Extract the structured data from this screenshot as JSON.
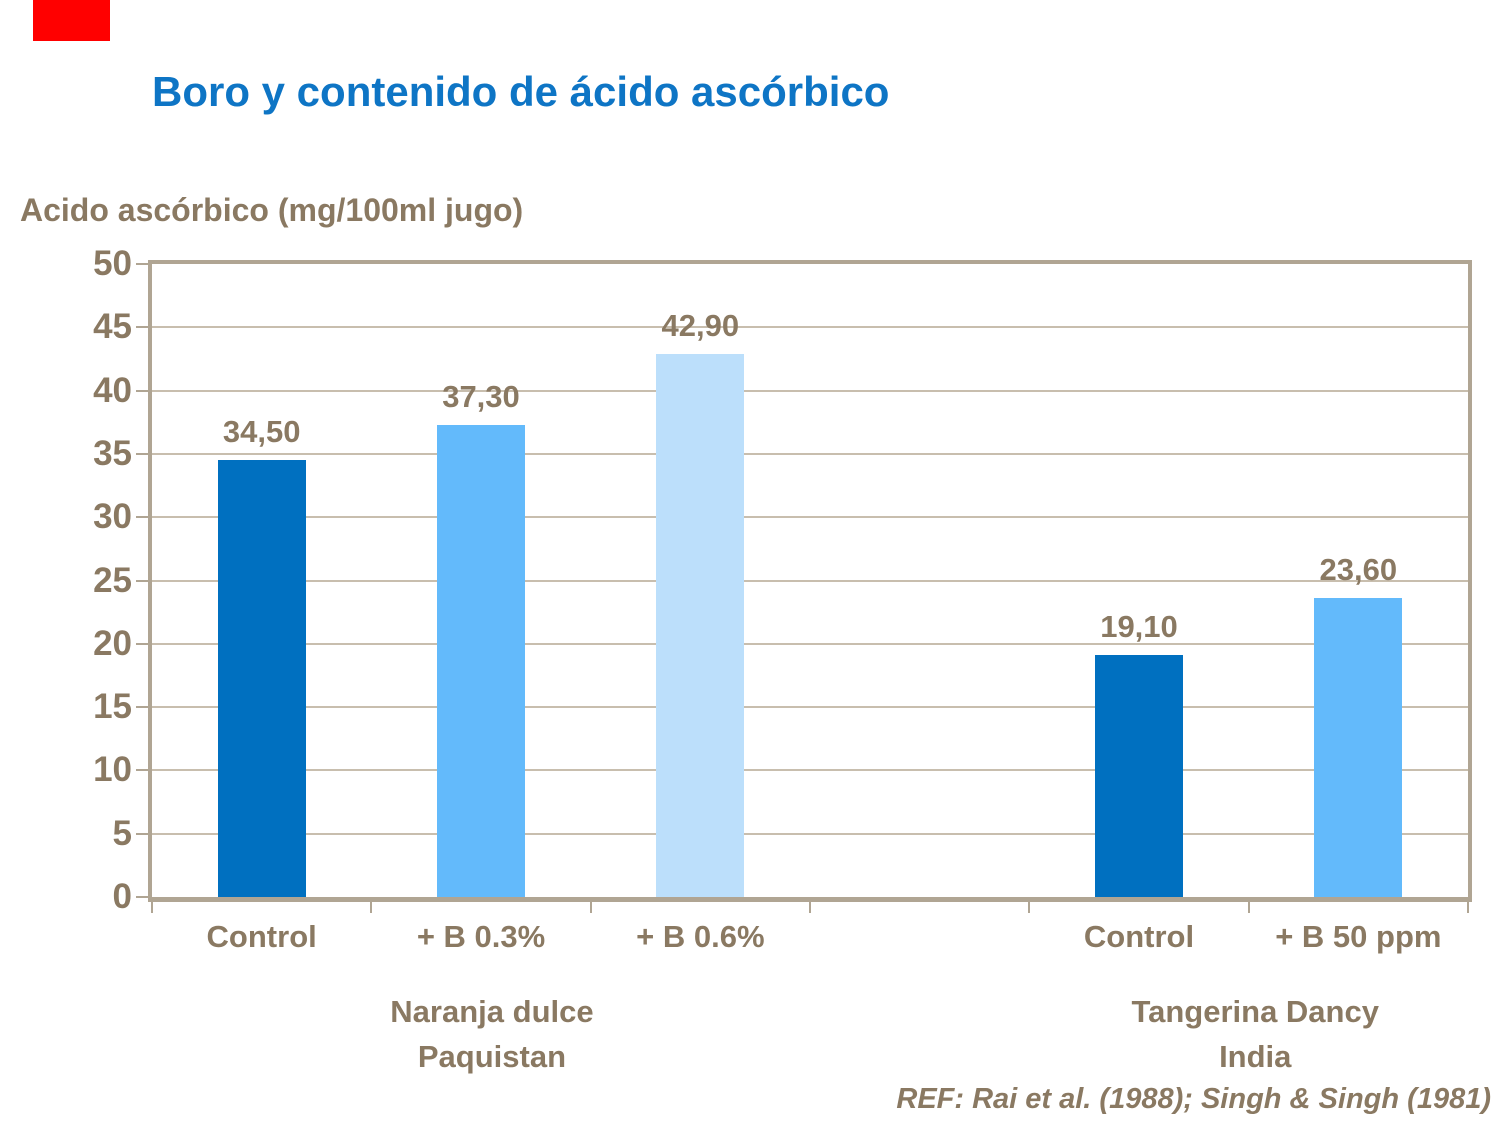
{
  "slide": {
    "title": "Boro y contenido de ácido ascórbico",
    "reference": "REF: Rai et al. (1988); Singh & Singh (1981)"
  },
  "chart_data": {
    "type": "bar",
    "title": "Boro y contenido de ácido ascórbico",
    "ylabel": "Acido ascórbico (mg/100ml jugo)",
    "xlabel": "",
    "ylim": [
      0,
      50
    ],
    "yticks": [
      0,
      5,
      10,
      15,
      20,
      25,
      30,
      35,
      40,
      45,
      50
    ],
    "grid": true,
    "legend": false,
    "n_slots": 6,
    "categories": [
      "Control",
      "+ B 0.3%",
      "+ B 0.6%",
      "Control",
      "+ B 50 ppm"
    ],
    "values": [
      34.5,
      37.3,
      42.9,
      19.1,
      23.6
    ],
    "bars": [
      {
        "category": "Control",
        "value": 34.5,
        "label": "34,50",
        "slot": 0,
        "color": "bar_dark",
        "group": "Naranja dulce Paquistan"
      },
      {
        "category": "+ B 0.3%",
        "value": 37.3,
        "label": "37,30",
        "slot": 1,
        "color": "bar_medium",
        "group": "Naranja dulce Paquistan"
      },
      {
        "category": "+ B 0.6%",
        "value": 42.9,
        "label": "42,90",
        "slot": 2,
        "color": "bar_light",
        "group": "Naranja dulce Paquistan"
      },
      {
        "category": "Control",
        "value": 19.1,
        "label": "19,10",
        "slot": 4,
        "color": "bar_dark",
        "group": "Tangerina Dancy India"
      },
      {
        "category": "+ B 50 ppm",
        "value": 23.6,
        "label": "23,60",
        "slot": 5,
        "color": "bar_medium",
        "group": "Tangerina Dancy India"
      }
    ],
    "groups": [
      {
        "line1": "Naranja dulce",
        "line2": "Paquistan",
        "center_slot": 1.05
      },
      {
        "line1": "Tangerina Dancy",
        "line2": "India",
        "center_slot": 4.53
      }
    ],
    "colors": {
      "bar_dark": "#0070C0",
      "bar_medium": "#63BAFB",
      "bar_light": "#BCDFFB",
      "title": "#0E75C5",
      "axis_text": "#8A7962",
      "grid": "#C8BEAE",
      "border": "#B0A593",
      "accent_red": "#FF0000"
    }
  }
}
